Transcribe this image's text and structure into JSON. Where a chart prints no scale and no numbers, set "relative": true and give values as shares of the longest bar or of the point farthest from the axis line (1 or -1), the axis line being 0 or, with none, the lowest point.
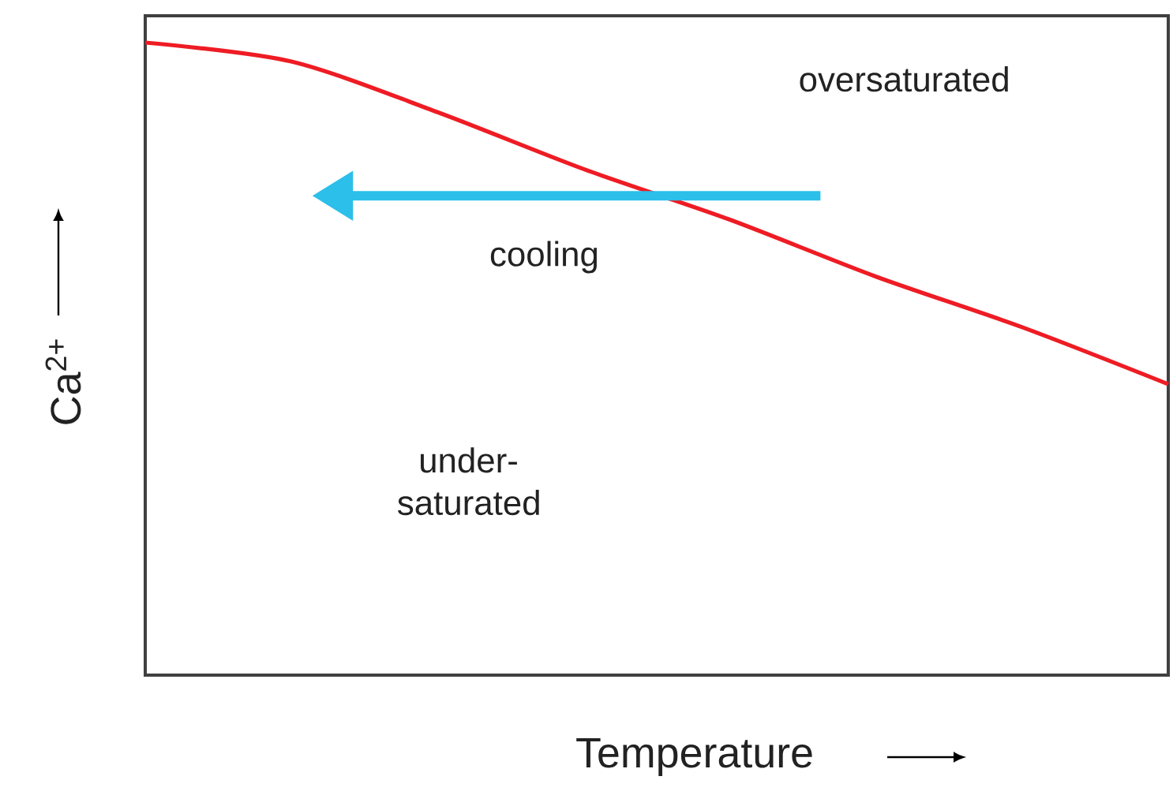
{
  "chart_data": {
    "type": "line",
    "relative": true,
    "xlabel": "Temperature",
    "ylabel": "Ca$^{2+}$",
    "categories": [
      null,
      null,
      null,
      null,
      null,
      null,
      null,
      null
    ],
    "values": [
      1,
      0.97,
      0.89,
      0.8,
      0.72,
      0.63,
      0.55,
      0.46
    ],
    "color": "#ee1c24",
    "annotations": [
      "oversaturated",
      "cooling",
      "under-saturated"
    ]
  }
}
